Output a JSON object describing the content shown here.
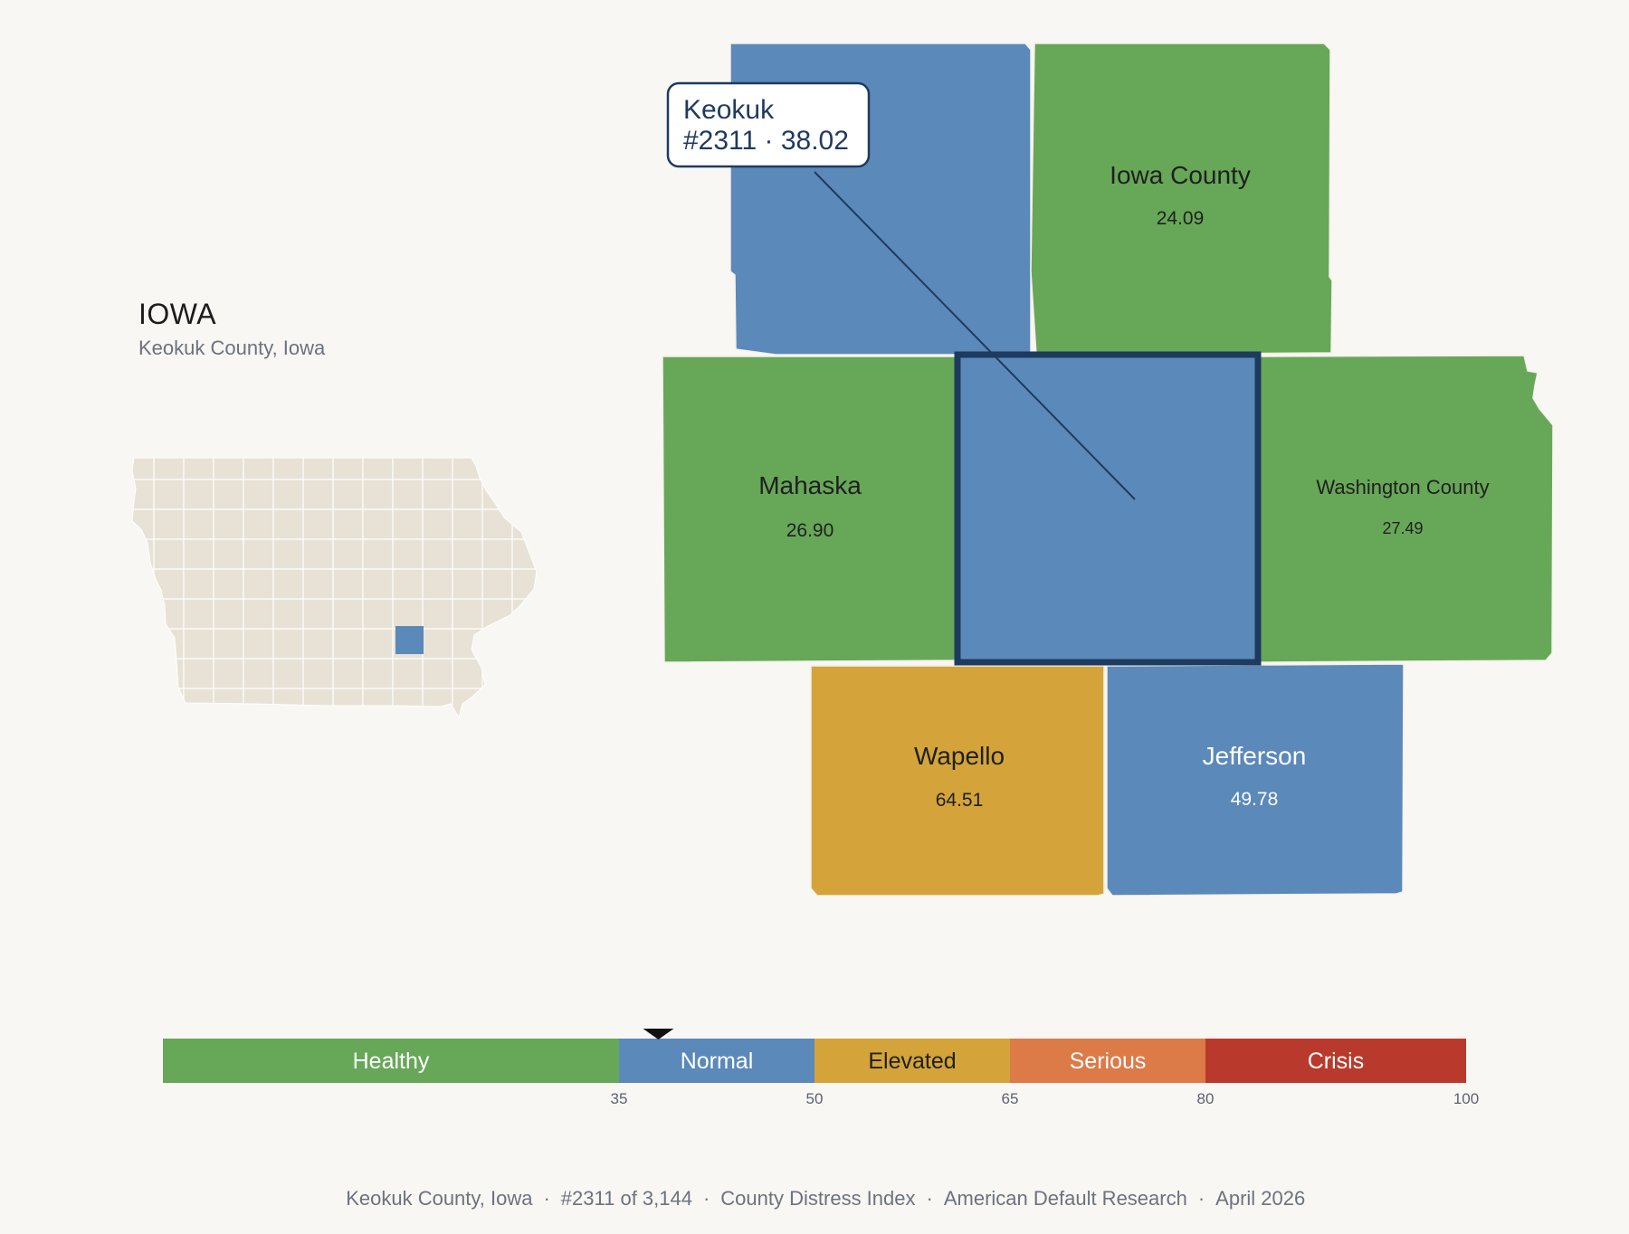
{
  "header": {
    "state_name": "IOWA",
    "subtitle": "Keokuk County, Iowa"
  },
  "colors": {
    "healthy": "#67a758",
    "normal": "#5b89b9",
    "elevated": "#d4a43a",
    "serious": "#dc7a48",
    "crisis": "#b93a2c",
    "highlight_border": "#1e3a5f",
    "locator_fill": "#e8e2d6",
    "background": "#f9f7f3"
  },
  "focus_county": {
    "name": "Keokuk",
    "rank_label": "#2311 · 38.02",
    "category": "normal"
  },
  "neighbors": [
    {
      "name": "Iowa County",
      "value": "24.09",
      "category": "healthy"
    },
    {
      "name": "Mahaska",
      "value": "26.90",
      "category": "healthy"
    },
    {
      "name": "Washington County",
      "value": "27.49",
      "category": "healthy"
    },
    {
      "name": "Wapello",
      "value": "64.51",
      "category": "elevated"
    },
    {
      "name": "Jefferson",
      "value": "49.78",
      "category": "normal"
    },
    {
      "name": "",
      "value": "",
      "category": "normal"
    }
  ],
  "legend": {
    "segments": [
      {
        "label": "Healthy",
        "from": 0,
        "to": 35,
        "category": "healthy"
      },
      {
        "label": "Normal",
        "from": 35,
        "to": 50,
        "category": "normal"
      },
      {
        "label": "Elevated",
        "from": 50,
        "to": 65,
        "category": "elevated"
      },
      {
        "label": "Serious",
        "from": 65,
        "to": 80,
        "category": "serious"
      },
      {
        "label": "Crisis",
        "from": 80,
        "to": 100,
        "category": "crisis"
      }
    ],
    "ticks": [
      "35",
      "50",
      "65",
      "80",
      "100"
    ],
    "marker_value": 38.02
  },
  "footer": {
    "items": [
      "Keokuk County, Iowa",
      "#2311 of 3,144",
      "County Distress Index",
      "American Default Research",
      "April 2026"
    ],
    "separator": "·"
  }
}
